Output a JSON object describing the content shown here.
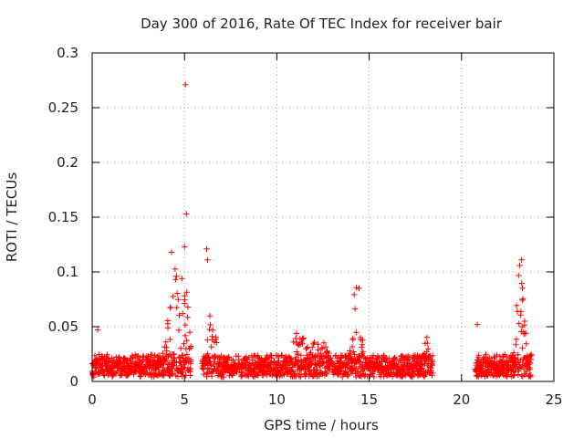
{
  "chart_data": {
    "type": "scatter",
    "title": "Day 300 of 2016, Rate Of TEC Index for receiver bair",
    "xlabel": "GPS time / hours",
    "ylabel": "ROTI / TECUs",
    "xlim": [
      0,
      25
    ],
    "ylim": [
      0,
      0.3
    ],
    "x_ticks": [
      0,
      5,
      10,
      15,
      20,
      25
    ],
    "x_tick_labels": [
      "0",
      "5",
      "10",
      "15",
      "20",
      "25"
    ],
    "y_ticks": [
      0,
      0.05,
      0.1,
      0.15,
      0.2,
      0.25,
      0.3
    ],
    "y_tick_labels": [
      "0",
      "0.05",
      "0.1",
      "0.15",
      "0.2",
      "0.25",
      "0.3"
    ],
    "grid": true,
    "marker": "+",
    "color": "#ff0000",
    "observation_segments": [
      {
        "start": 0.0,
        "end": 5.35,
        "base": 0.013
      },
      {
        "start": 5.95,
        "end": 18.45,
        "base": 0.012
      },
      {
        "start": 20.75,
        "end": 23.8,
        "base": 0.013
      }
    ],
    "activity_peaks": [
      {
        "center": 4.4,
        "width": 0.4,
        "height": 0.07
      },
      {
        "center": 5.0,
        "width": 0.3,
        "height": 0.06
      },
      {
        "center": 6.5,
        "width": 0.3,
        "height": 0.04
      },
      {
        "center": 11.3,
        "width": 0.6,
        "height": 0.025
      },
      {
        "center": 12.4,
        "width": 0.4,
        "height": 0.025
      },
      {
        "center": 14.35,
        "width": 0.3,
        "height": 0.06
      },
      {
        "center": 18.1,
        "width": 0.2,
        "height": 0.025
      },
      {
        "center": 23.2,
        "width": 0.25,
        "height": 0.08
      }
    ],
    "notable_points": [
      {
        "x": 5.05,
        "y": 0.271
      },
      {
        "x": 5.1,
        "y": 0.153
      },
      {
        "x": 5.0,
        "y": 0.123
      },
      {
        "x": 4.3,
        "y": 0.118
      },
      {
        "x": 6.2,
        "y": 0.121
      },
      {
        "x": 6.25,
        "y": 0.111
      },
      {
        "x": 14.45,
        "y": 0.085
      },
      {
        "x": 23.25,
        "y": 0.111
      },
      {
        "x": 20.85,
        "y": 0.052
      },
      {
        "x": 0.3,
        "y": 0.047
      }
    ]
  }
}
